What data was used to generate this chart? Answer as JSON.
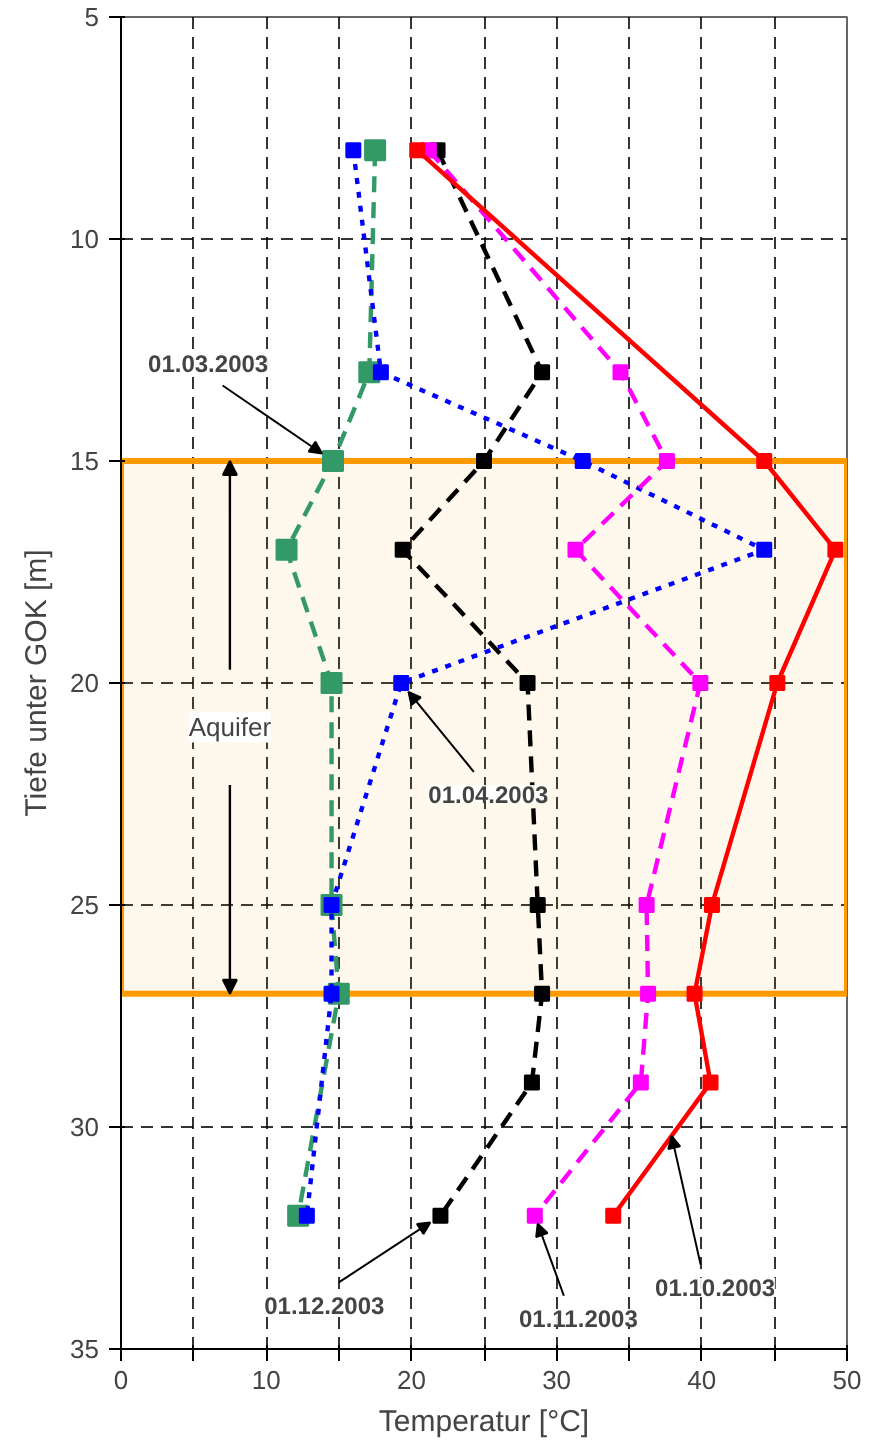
{
  "chart_data": {
    "type": "line",
    "xlabel": "Temperatur [°C]",
    "ylabel": "Tiefe unter GOK [m]",
    "xlim": [
      0,
      50
    ],
    "ylim": [
      35,
      5
    ],
    "xticks": [
      0,
      {
        "value": 5,
        "label": null
      },
      10,
      {
        "value": 15,
        "label": null
      },
      20,
      {
        "value": 25,
        "label": null
      },
      30,
      {
        "value": 35,
        "label": null
      },
      40,
      {
        "value": 45,
        "label": null
      },
      50
    ],
    "yticks": [
      5,
      10,
      15,
      20,
      25,
      30,
      35
    ],
    "grid": true,
    "legend": false,
    "marker": "square",
    "series": [
      {
        "name": "01.03.2003",
        "color": "#339966",
        "line_style": "dashed",
        "x": [
          17.5,
          17.1,
          14.6,
          11.4,
          14.5,
          14.5,
          15.0,
          12.2
        ],
        "values": [
          8,
          13,
          15,
          17,
          20,
          25,
          27,
          32
        ]
      },
      {
        "name": "01.04.2003",
        "color": "#0000ff",
        "line_style": "dotted",
        "x": [
          16.0,
          17.9,
          31.8,
          44.3,
          19.3,
          14.5,
          14.5,
          12.8
        ],
        "values": [
          8,
          13,
          15,
          17,
          20,
          25,
          27,
          32
        ]
      },
      {
        "name": "01.12.2003",
        "color": "#000000",
        "line_style": "dashed",
        "x": [
          21.8,
          29.0,
          25.0,
          19.4,
          28.0,
          28.7,
          29.0,
          28.3,
          22.0
        ],
        "values": [
          8,
          13,
          15,
          17,
          20,
          25,
          27,
          29,
          32
        ]
      },
      {
        "name": "01.11.2003",
        "color": "#ff00ff",
        "line_style": "dashed",
        "x": [
          21.2,
          34.4,
          37.6,
          31.3,
          39.9,
          36.2,
          36.3,
          35.8,
          28.5
        ],
        "values": [
          8,
          13,
          15,
          17,
          20,
          25,
          27,
          29,
          32
        ]
      },
      {
        "name": "01.10.2003",
        "color": "#ff0000",
        "line_style": "solid",
        "x": [
          20.4,
          44.3,
          49.2,
          45.2,
          40.7,
          39.5,
          40.6,
          33.9
        ],
        "values": [
          8,
          15,
          17,
          20,
          25,
          27,
          29,
          32
        ]
      }
    ],
    "bands": [
      {
        "axis": "y",
        "from": 15,
        "to": 27,
        "label": "Aquifer",
        "color": "#ff9900"
      }
    ]
  }
}
